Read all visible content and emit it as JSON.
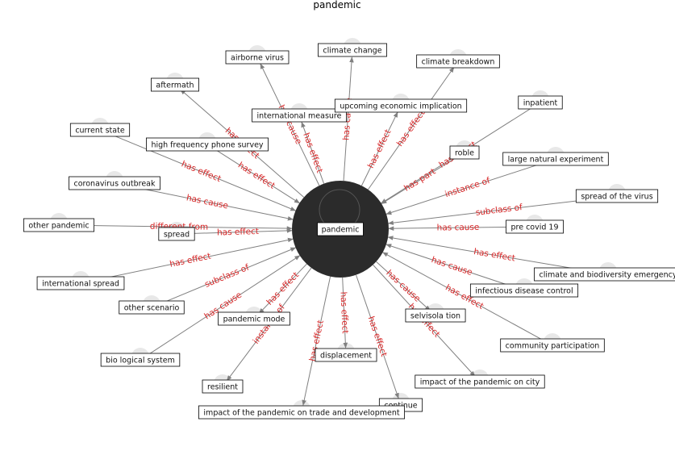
{
  "title": "pandemic",
  "center": {
    "label": "pandemic",
    "color": "#2b2b2b"
  },
  "colors": {
    "edge": "#808080",
    "edge_label": "#d62728",
    "box_border": "#000000",
    "box_fill": "#ffffff",
    "halo": "#e8e8e8"
  },
  "nodes": [
    {
      "id": "climate-change",
      "label": "climate change",
      "relation": "has cause"
    },
    {
      "id": "airborne-virus",
      "label": "airborne virus",
      "relation": "has cause"
    },
    {
      "id": "climate-breakdown",
      "label": "climate breakdown",
      "relation": "has effect"
    },
    {
      "id": "aftermath",
      "label": "aftermath",
      "relation": "has effect"
    },
    {
      "id": "inpatient",
      "label": "inpatient",
      "relation": "has effect"
    },
    {
      "id": "international-measure",
      "label": "international measure",
      "relation": "has effect"
    },
    {
      "id": "upcoming-economic-implication",
      "label": "upcoming economic implication",
      "relation": "has effect"
    },
    {
      "id": "current-state",
      "label": "current state",
      "relation": "has effect"
    },
    {
      "id": "high-frequency-phone-survey",
      "label": "high frequency phone survey",
      "relation": "has effect"
    },
    {
      "id": "roble",
      "label": "roble",
      "relation": "has part"
    },
    {
      "id": "large-natural-experiment",
      "label": "large natural experiment",
      "relation": "instance of"
    },
    {
      "id": "coronavirus-outbreak",
      "label": "coronavirus outbreak",
      "relation": "has cause"
    },
    {
      "id": "spread-of-the-virus",
      "label": "spread of the virus",
      "relation": "subclass of"
    },
    {
      "id": "other-pandemic",
      "label": "other pandemic",
      "relation": "different from"
    },
    {
      "id": "spread",
      "label": "spread",
      "relation": "has effect"
    },
    {
      "id": "pre-covid-19",
      "label": "pre covid 19",
      "relation": "has cause"
    },
    {
      "id": "climate-and-biodiversity-emergency",
      "label": "climate and biodiversity emergency",
      "relation": "has effect"
    },
    {
      "id": "international-spread",
      "label": "international spread",
      "relation": "has effect"
    },
    {
      "id": "infectious-disease-control",
      "label": "infectious disease control",
      "relation": "has cause"
    },
    {
      "id": "other-scenario",
      "label": "other scenario",
      "relation": "subclass of"
    },
    {
      "id": "community-participation",
      "label": "community participation",
      "relation": "has effect"
    },
    {
      "id": "selvisola-tion",
      "label": "selvisola tion",
      "relation": "has cause"
    },
    {
      "id": "pandemic-mode",
      "label": "pandemic mode",
      "relation": "has effect"
    },
    {
      "id": "bio-logical-system",
      "label": "bio logical system",
      "relation": "has cause"
    },
    {
      "id": "displacement",
      "label": "displacement",
      "relation": "has effect"
    },
    {
      "id": "impact-of-the-pandemic-on-city",
      "label": "impact of the pandemic on city",
      "relation": "has effect"
    },
    {
      "id": "resilient",
      "label": "resilient",
      "relation": "instance of"
    },
    {
      "id": "continue",
      "label": "continue",
      "relation": "has effect"
    },
    {
      "id": "impact-of-the-pandemic-on-trade-and-development",
      "label": "impact of the pandemic on trade and development",
      "relation": "has effect"
    }
  ]
}
